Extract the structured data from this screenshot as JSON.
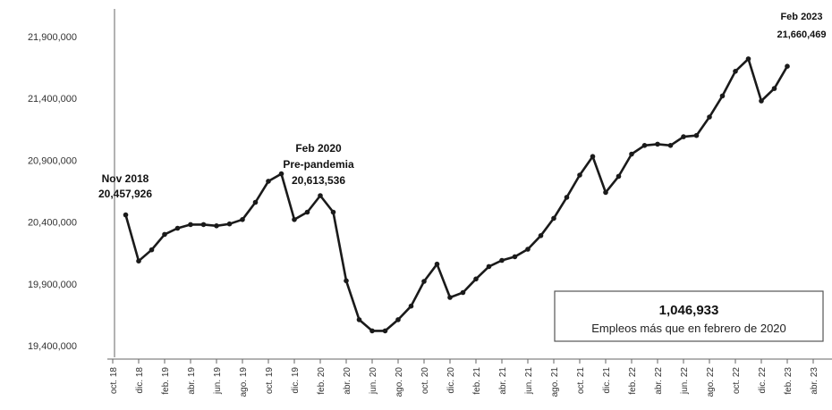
{
  "chart_data": {
    "type": "line",
    "title": "",
    "xlabel": "",
    "ylabel": "",
    "ylim": [
      19300000,
      22000000
    ],
    "y_ticks": [
      19400000,
      19900000,
      20400000,
      20900000,
      21400000,
      21900000
    ],
    "y_tick_labels": [
      "19,400,000",
      "19,900,000",
      "20,400,000",
      "20,900,000",
      "21,400,000",
      "21,900,000"
    ],
    "x_tick_labels": [
      "oct. 18",
      "dic. 18",
      "feb. 19",
      "abr. 19",
      "jun. 19",
      "ago. 19",
      "oct. 19",
      "dic. 19",
      "feb. 20",
      "abr. 20",
      "jun. 20",
      "ago. 20",
      "oct. 20",
      "dic. 20",
      "feb. 21",
      "abr. 21",
      "jun. 21",
      "ago. 21",
      "oct. 21",
      "dic. 21",
      "feb. 22",
      "abr. 22",
      "jun. 22",
      "ago. 22",
      "oct. 22",
      "dic. 22",
      "feb. 23",
      "abr. 23"
    ],
    "x_start": "2018-10",
    "x_end": "2023-04",
    "grid": false,
    "series": [
      {
        "x": [
          "2018-11",
          "2018-12",
          "2019-01",
          "2019-02",
          "2019-03",
          "2019-04",
          "2019-05",
          "2019-06",
          "2019-07",
          "2019-08",
          "2019-09",
          "2019-10",
          "2019-11",
          "2019-12",
          "2020-01",
          "2020-02",
          "2020-03",
          "2020-04",
          "2020-05",
          "2020-06",
          "2020-07",
          "2020-08",
          "2020-09",
          "2020-10",
          "2020-11",
          "2020-12",
          "2021-01",
          "2021-02",
          "2021-03",
          "2021-04",
          "2021-05",
          "2021-06",
          "2021-07",
          "2021-08",
          "2021-09",
          "2021-10",
          "2021-11",
          "2021-12",
          "2022-01",
          "2022-02",
          "2022-03",
          "2022-04",
          "2022-05",
          "2022-06",
          "2022-07",
          "2022-08",
          "2022-09",
          "2022-10",
          "2022-11",
          "2022-12",
          "2023-01",
          "2023-02"
        ],
        "values": [
          20457926,
          20085000,
          20175000,
          20300000,
          20350000,
          20380000,
          20380000,
          20370000,
          20385000,
          20420000,
          20560000,
          20730000,
          20790000,
          20420000,
          20480000,
          20613536,
          20480000,
          19925000,
          19610000,
          19520000,
          19520000,
          19610000,
          19720000,
          19920000,
          20060000,
          19790000,
          19830000,
          19940000,
          20040000,
          20090000,
          20120000,
          20180000,
          20290000,
          20430000,
          20600000,
          20780000,
          20930000,
          20640000,
          20770000,
          20950000,
          21020000,
          21030000,
          21020000,
          21090000,
          21100000,
          21250000,
          21420000,
          21620000,
          21720000,
          21380000,
          21480000,
          21660469
        ]
      }
    ],
    "annotations": [
      {
        "label": "Nov 2018",
        "value": "20,457,926"
      },
      {
        "label": "Feb 2020",
        "sublabel": "Pre-pandemia",
        "value": "20,613,536"
      },
      {
        "label": "Feb 2023",
        "value": "21,660,469"
      }
    ],
    "callout": {
      "value": "1,046,933",
      "text": "Empleos más que en febrero de 2020"
    }
  }
}
